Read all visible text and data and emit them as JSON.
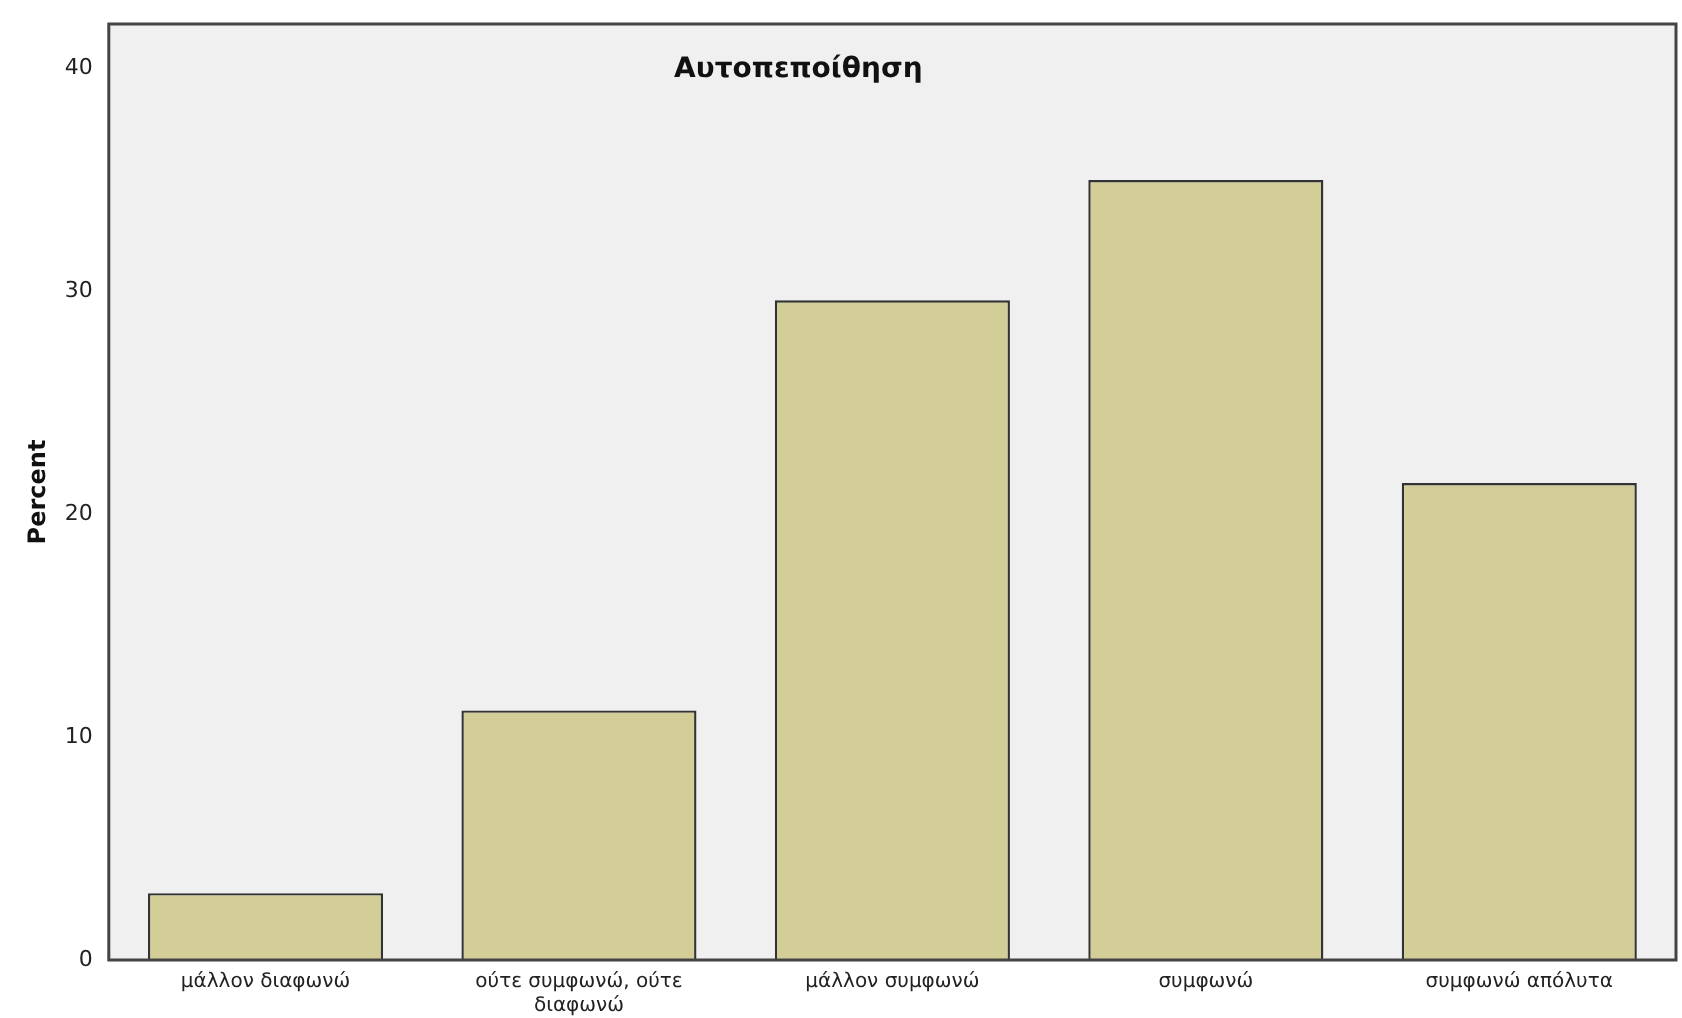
{
  "chart_data": {
    "type": "bar",
    "title": "Αυτοπεποίθηση",
    "ylabel": "Percent",
    "categories": [
      "μάλλον διαφωνώ",
      "ούτε συμφωνώ, ούτε διαφωνώ",
      "μάλλον συμφωνώ",
      "συμφωνώ",
      "συμφωνώ απόλυτα"
    ],
    "values": [
      3.0,
      11.2,
      29.6,
      35.0,
      21.4
    ],
    "color": "#d3ce97",
    "ylim": [
      0,
      42
    ],
    "yticks": [
      0,
      10,
      20,
      30,
      40
    ],
    "grid": false,
    "legend": false
  }
}
